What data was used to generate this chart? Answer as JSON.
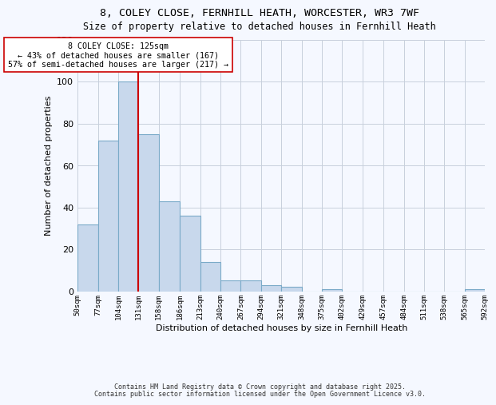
{
  "title": "8, COLEY CLOSE, FERNHILL HEATH, WORCESTER, WR3 7WF",
  "subtitle": "Size of property relative to detached houses in Fernhill Heath",
  "xlabel": "Distribution of detached houses by size in Fernhill Heath",
  "ylabel": "Number of detached properties",
  "bar_color": "#c8d8ec",
  "bar_edge_color": "#7aaac8",
  "background_color": "#f5f8ff",
  "grid_color": "#c8d0dc",
  "vline_x": 131,
  "vline_color": "#cc0000",
  "annotation_title": "8 COLEY CLOSE: 125sqm",
  "annotation_line1": "← 43% of detached houses are smaller (167)",
  "annotation_line2": "57% of semi-detached houses are larger (217) →",
  "bins": [
    50,
    77,
    104,
    131,
    158,
    186,
    213,
    240,
    267,
    294,
    321,
    348,
    375,
    402,
    429,
    457,
    484,
    511,
    538,
    565,
    592
  ],
  "bin_labels": [
    "50sqm",
    "77sqm",
    "104sqm",
    "131sqm",
    "158sqm",
    "186sqm",
    "213sqm",
    "240sqm",
    "267sqm",
    "294sqm",
    "321sqm",
    "348sqm",
    "375sqm",
    "402sqm",
    "429sqm",
    "457sqm",
    "484sqm",
    "511sqm",
    "538sqm",
    "565sqm",
    "592sqm"
  ],
  "values": [
    32,
    72,
    100,
    75,
    43,
    36,
    14,
    5,
    5,
    3,
    2,
    0,
    1,
    0,
    0,
    0,
    0,
    0,
    0,
    1
  ],
  "ylim": [
    0,
    120
  ],
  "yticks": [
    0,
    20,
    40,
    60,
    80,
    100,
    120
  ],
  "footer1": "Contains HM Land Registry data © Crown copyright and database right 2025.",
  "footer2": "Contains public sector information licensed under the Open Government Licence v3.0."
}
